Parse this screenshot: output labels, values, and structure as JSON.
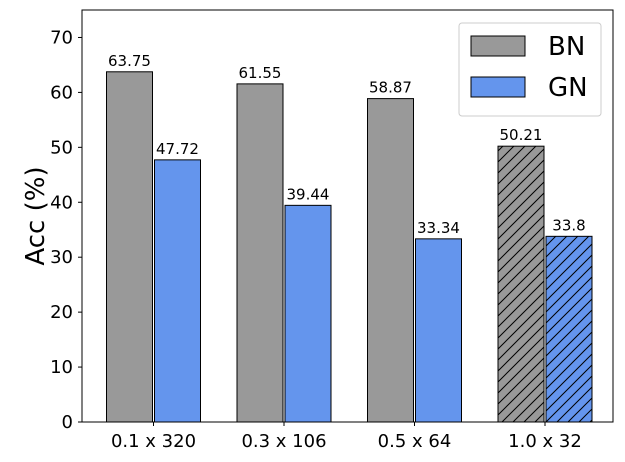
{
  "chart_data": {
    "type": "bar",
    "categories": [
      "0.1 x 320",
      "0.3 x 106",
      "0.5 x 64",
      "1.0 x 32"
    ],
    "series": [
      {
        "name": "BN",
        "values": [
          63.75,
          61.55,
          58.87,
          50.21
        ],
        "color": "#999999"
      },
      {
        "name": "GN",
        "values": [
          47.72,
          39.44,
          33.34,
          33.8
        ],
        "color": "#6495ED"
      }
    ],
    "data_labels": [
      [
        "63.75",
        "61.55",
        "58.87",
        "50.21"
      ],
      [
        "47.72",
        "39.44",
        "33.34",
        "33.8"
      ]
    ],
    "hatched_category": "1.0 x 32",
    "xlabel": "",
    "ylabel": "Acc (%)",
    "ylim": [
      0,
      75
    ],
    "yticks": [
      0,
      10,
      20,
      30,
      40,
      50,
      60,
      70
    ],
    "grid": false,
    "legend_position": "top-right"
  }
}
